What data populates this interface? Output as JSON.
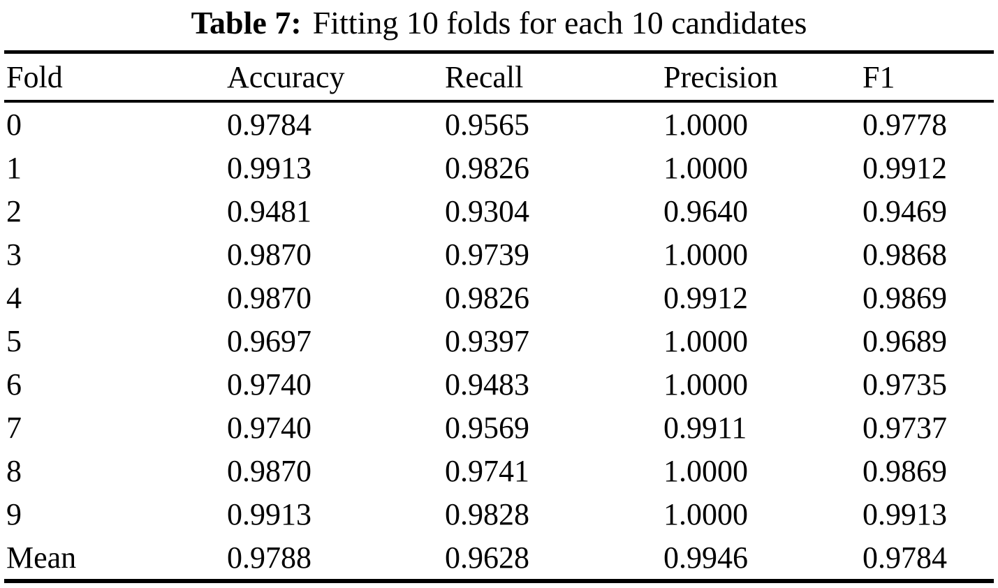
{
  "page": {
    "background": "#ffffff",
    "text_color": "#000000",
    "rule_color": "#000000"
  },
  "caption": {
    "label": "Table 7:",
    "text": "Fitting 10 folds for each 10 candidates"
  },
  "table": {
    "columns": [
      "Fold",
      "Accuracy",
      "Recall",
      "Precision",
      "F1"
    ],
    "rows": [
      {
        "fold": "0",
        "accuracy": "0.9784",
        "recall": "0.9565",
        "precision": "1.0000",
        "f1": "0.9778"
      },
      {
        "fold": "1",
        "accuracy": "0.9913",
        "recall": "0.9826",
        "precision": "1.0000",
        "f1": "0.9912"
      },
      {
        "fold": "2",
        "accuracy": "0.9481",
        "recall": "0.9304",
        "precision": "0.9640",
        "f1": "0.9469"
      },
      {
        "fold": "3",
        "accuracy": "0.9870",
        "recall": "0.9739",
        "precision": "1.0000",
        "f1": "0.9868"
      },
      {
        "fold": "4",
        "accuracy": "0.9870",
        "recall": "0.9826",
        "precision": "0.9912",
        "f1": "0.9869"
      },
      {
        "fold": "5",
        "accuracy": "0.9697",
        "recall": "0.9397",
        "precision": "1.0000",
        "f1": "0.9689"
      },
      {
        "fold": "6",
        "accuracy": "0.9740",
        "recall": "0.9483",
        "precision": "1.0000",
        "f1": "0.9735"
      },
      {
        "fold": "7",
        "accuracy": "0.9740",
        "recall": "0.9569",
        "precision": "0.9911",
        "f1": "0.9737"
      },
      {
        "fold": "8",
        "accuracy": "0.9870",
        "recall": "0.9741",
        "precision": "1.0000",
        "f1": "0.9869"
      },
      {
        "fold": "9",
        "accuracy": "0.9913",
        "recall": "0.9828",
        "precision": "1.0000",
        "f1": "0.9913"
      },
      {
        "fold": "Mean",
        "accuracy": "0.9788",
        "recall": "0.9628",
        "precision": "0.9946",
        "f1": "0.9784"
      }
    ]
  }
}
